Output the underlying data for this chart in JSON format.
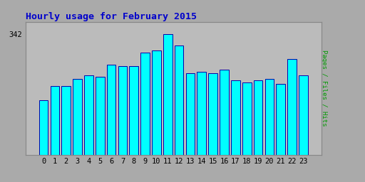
{
  "title": "Hourly usage for February 2015",
  "hours": [
    0,
    1,
    2,
    3,
    4,
    5,
    6,
    7,
    8,
    9,
    10,
    11,
    12,
    13,
    14,
    15,
    16,
    17,
    18,
    19,
    20,
    21,
    22,
    23
  ],
  "values": [
    155,
    195,
    195,
    215,
    225,
    220,
    255,
    250,
    250,
    290,
    295,
    342,
    310,
    230,
    235,
    230,
    240,
    210,
    205,
    210,
    215,
    200,
    270,
    225
  ],
  "bar_color": "#00FFFF",
  "bar_edge_color": "#0000AA",
  "title_color": "#0000CC",
  "ylabel": "Pages / Files / Hits",
  "ylabel_color": "#009900",
  "background_color": "#AAAAAA",
  "plot_bg_color": "#BBBBBB",
  "title_fontsize": 9.5,
  "tick_fontsize": 7.5
}
